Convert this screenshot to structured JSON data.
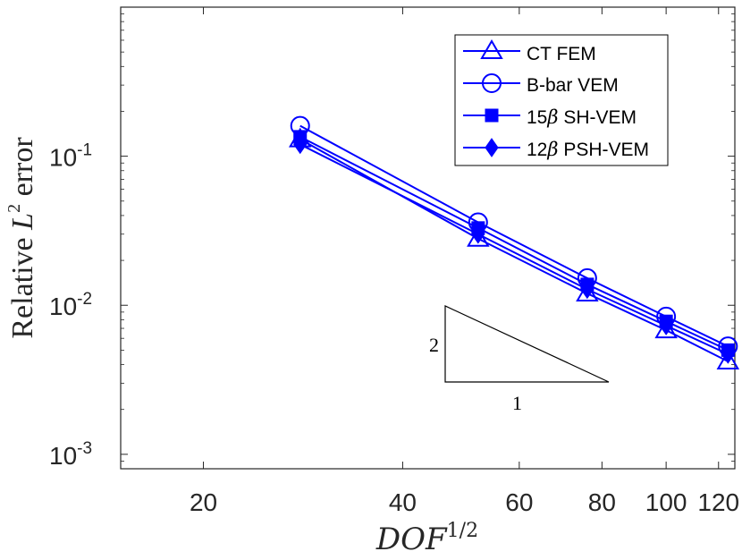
{
  "chart_data": {
    "type": "line",
    "xscale": "log",
    "yscale": "log",
    "xlabel_base": "DOF",
    "xlabel_sup": "1/2",
    "ylabel_prefix": "Relative ",
    "ylabel_var": "L",
    "ylabel_sup": "2",
    "ylabel_suffix": " error",
    "xlim": [
      15,
      127
    ],
    "ylim": [
      0.0008,
      1
    ],
    "xticks": [
      {
        "value": 20,
        "label": "20"
      },
      {
        "value": 40,
        "label": "40"
      },
      {
        "value": 60,
        "label": "60"
      },
      {
        "value": 80,
        "label": "80"
      },
      {
        "value": 100,
        "label": "100"
      },
      {
        "value": 120,
        "label": "120"
      }
    ],
    "yticks": [
      {
        "value": 0.1,
        "base": "10",
        "exp": "-1"
      },
      {
        "value": 0.01,
        "base": "10",
        "exp": "-2"
      },
      {
        "value": 0.001,
        "base": "10",
        "exp": "-3"
      }
    ],
    "x": [
      28,
      52,
      76,
      100,
      124
    ],
    "series": [
      {
        "name": "CT FEM",
        "marker": "triangle",
        "values": [
          0.13,
          0.028,
          0.012,
          0.0068,
          0.0042
        ]
      },
      {
        "name": "B-bar VEM",
        "marker": "circle",
        "values": [
          0.16,
          0.036,
          0.0152,
          0.0084,
          0.0053
        ]
      },
      {
        "name": "SH-VEM",
        "name_prefix": "15",
        "name_symbol": "β",
        "name_suffix": " SH-VEM",
        "marker": "square",
        "values": [
          0.135,
          0.033,
          0.0138,
          0.0078,
          0.005
        ]
      },
      {
        "name": "PSH-VEM",
        "name_prefix": "12",
        "name_symbol": "β",
        "name_suffix": " PSH-VEM",
        "marker": "diamond",
        "values": [
          0.12,
          0.03,
          0.0128,
          0.0073,
          0.0047
        ]
      }
    ],
    "slope_triangle": {
      "rise_label": "2",
      "run_label": "1"
    },
    "legend": {
      "location": "top-right"
    },
    "line_color": "#0000ff"
  }
}
